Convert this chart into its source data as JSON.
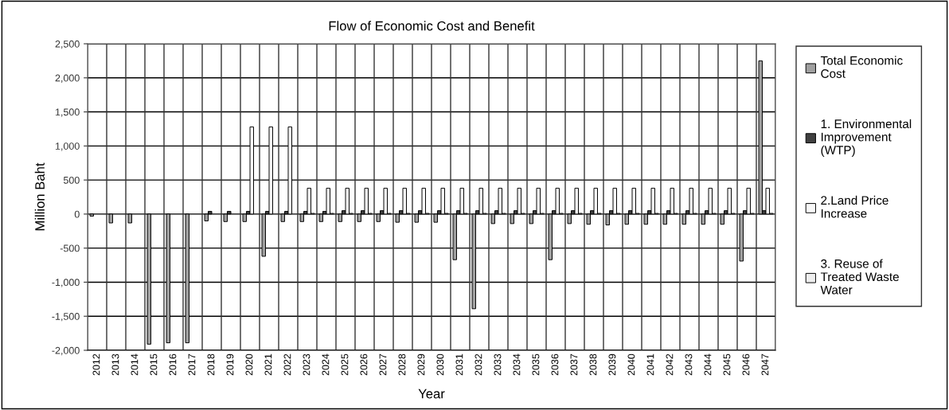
{
  "chart_data": {
    "type": "bar",
    "title": "Flow of Economic Cost and Benefit",
    "xlabel": "Year",
    "ylabel": "Million Baht",
    "categories": [
      "2012",
      "2013",
      "2014",
      "2015",
      "2016",
      "2017",
      "2018",
      "2019",
      "2020",
      "2021",
      "2022",
      "2023",
      "2024",
      "2025",
      "2026",
      "2027",
      "2028",
      "2029",
      "2030",
      "2031",
      "2032",
      "2033",
      "2034",
      "2035",
      "2036",
      "2037",
      "2038",
      "2039",
      "2040",
      "2041",
      "2042",
      "2043",
      "2044",
      "2045",
      "2046",
      "2047"
    ],
    "series": [
      {
        "name": "Total Economic Cost",
        "color": "#a0a0a0",
        "values": [
          -30,
          -130,
          -130,
          -1910,
          -1890,
          -1890,
          -100,
          -110,
          -110,
          -620,
          -110,
          -110,
          -110,
          -110,
          -110,
          -110,
          -120,
          -120,
          -120,
          -670,
          -1390,
          -140,
          -140,
          -140,
          -670,
          -140,
          -150,
          -160,
          -150,
          -150,
          -150,
          -150,
          -150,
          -150,
          -690,
          2250
        ]
      },
      {
        "name": "1. Environmental Improvement (WTP)",
        "color": "#404040",
        "values": [
          null,
          null,
          null,
          null,
          null,
          null,
          40,
          40,
          40,
          40,
          40,
          40,
          40,
          50,
          50,
          50,
          50,
          50,
          50,
          50,
          50,
          50,
          50,
          50,
          50,
          50,
          50,
          50,
          50,
          50,
          50,
          50,
          50,
          50,
          50,
          50
        ]
      },
      {
        "name": "2.Land Price Increase",
        "color": "#f8f8f8",
        "values": [
          null,
          null,
          null,
          null,
          null,
          null,
          null,
          null,
          1280,
          1280,
          1280,
          380,
          380,
          380,
          380,
          380,
          380,
          380,
          380,
          380,
          380,
          380,
          380,
          380,
          380,
          380,
          380,
          380,
          380,
          380,
          380,
          380,
          380,
          380,
          380,
          380
        ]
      },
      {
        "name": "3. Reuse of Treated Waste Water",
        "color": "#eeeeee",
        "values": [
          null,
          null,
          null,
          null,
          null,
          null,
          null,
          null,
          null,
          null,
          null,
          10,
          10,
          10,
          10,
          10,
          10,
          10,
          10,
          10,
          10,
          10,
          10,
          10,
          10,
          10,
          10,
          10,
          10,
          10,
          10,
          10,
          10,
          10,
          10,
          10
        ]
      }
    ],
    "ylim": [
      -2000,
      2500
    ],
    "yticks": [
      {
        "value": -2000,
        "label": "-2,000"
      },
      {
        "value": -1500,
        "label": "-1,500"
      },
      {
        "value": -1000,
        "label": "-1,000"
      },
      {
        "value": -500,
        "label": "-500"
      },
      0,
      500,
      {
        "value": 1000,
        "label": "1,000"
      },
      {
        "value": 1500,
        "label": "1,500"
      },
      {
        "value": 2000,
        "label": "2,000"
      },
      {
        "value": 2500,
        "label": "2,500"
      }
    ],
    "grid": true,
    "legend": "right"
  }
}
